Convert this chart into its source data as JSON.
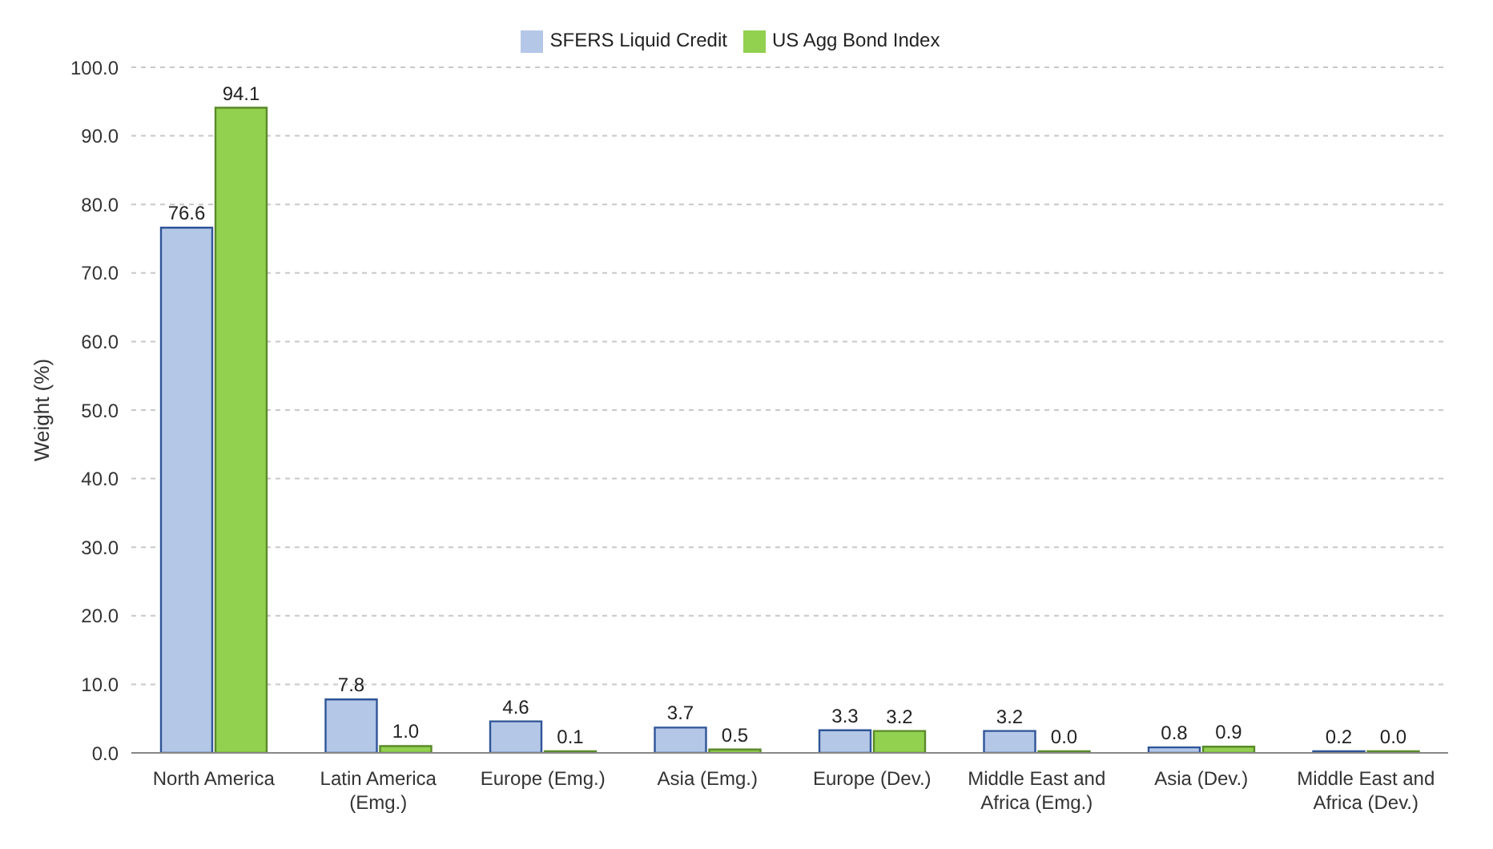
{
  "chart_data": {
    "type": "bar",
    "categories": [
      "North America",
      "Latin America (Emg.)",
      "Europe (Emg.)",
      "Asia (Emg.)",
      "Europe (Dev.)",
      "Middle East and Africa (Emg.)",
      "Asia (Dev.)",
      "Middle East and Africa (Dev.)"
    ],
    "series": [
      {
        "name": "SFERS Liquid Credit",
        "color": "#b4c7e7",
        "values": [
          76.6,
          7.8,
          4.6,
          3.7,
          3.3,
          3.2,
          0.8,
          0.2
        ],
        "value_labels": [
          "76.6",
          "7.8",
          "4.6",
          "3.7",
          "3.3",
          "3.2",
          "0.8",
          "0.2"
        ]
      },
      {
        "name": "US Agg Bond Index",
        "color": "#92d050",
        "values": [
          94.1,
          1.0,
          0.1,
          0.5,
          3.2,
          0.0,
          0.9,
          0.0
        ],
        "value_labels": [
          "94.1",
          "1.0",
          "0.1",
          "0.5",
          "3.2",
          "0.0",
          "0.9",
          "0.0"
        ]
      }
    ],
    "ylabel": "Weight (%)",
    "ylim": [
      0,
      100
    ],
    "yticks": [
      {
        "value": 0,
        "label": "0.0"
      },
      {
        "value": 10,
        "label": "10.0"
      },
      {
        "value": 20,
        "label": "20.0"
      },
      {
        "value": 30,
        "label": "30.0"
      },
      {
        "value": 40,
        "label": "40.0"
      },
      {
        "value": 50,
        "label": "50.0"
      },
      {
        "value": 60,
        "label": "60.0"
      },
      {
        "value": 70,
        "label": "70.0"
      },
      {
        "value": 80,
        "label": "80.0"
      },
      {
        "value": 90,
        "label": "90.0"
      },
      {
        "value": 100,
        "label": "100.0"
      }
    ],
    "grid": "y",
    "legend": "top"
  }
}
